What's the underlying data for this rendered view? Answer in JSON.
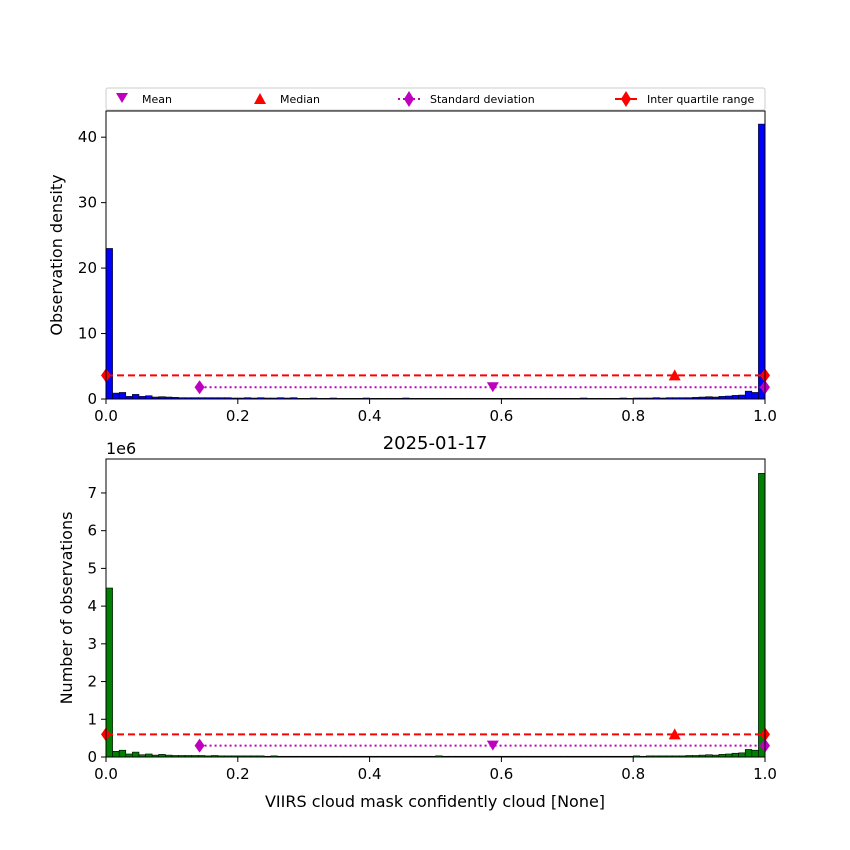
{
  "legend": {
    "mean": "Mean",
    "median": "Median",
    "std": "Standard deviation",
    "iqr": "Inter quartile range"
  },
  "colors": {
    "density_bars": "#0000ff",
    "count_bars": "#008000",
    "mean_marker": "#bf00bf",
    "std": "#bf00bf",
    "iqr": "#ff0000",
    "median_marker": "#ff0000"
  },
  "chart_data": [
    {
      "type": "bar",
      "title": "",
      "xlabel": "",
      "ylabel": "Observation density",
      "xlim": [
        0,
        1
      ],
      "ylim": [
        0,
        44
      ],
      "xticks": [
        "0.0",
        "0.2",
        "0.4",
        "0.6",
        "0.8",
        "1.0"
      ],
      "yticks": [
        "0",
        "10",
        "20",
        "30",
        "40"
      ],
      "bin_width": 0.01,
      "values": [
        23.0,
        0.9,
        1.0,
        0.4,
        0.7,
        0.4,
        0.5,
        0.3,
        0.35,
        0.3,
        0.25,
        0.2,
        0.2,
        0.2,
        0.2,
        0.2,
        0.2,
        0.2,
        0.2,
        0.15,
        0.15,
        0.2,
        0.15,
        0.2,
        0.15,
        0.15,
        0.2,
        0.15,
        0.2,
        0.1,
        0.1,
        0.15,
        0.1,
        0.1,
        0.15,
        0.1,
        0.1,
        0.1,
        0.1,
        0.15,
        0.1,
        0.1,
        0.1,
        0.1,
        0.1,
        0.15,
        0.1,
        0.1,
        0.1,
        0.1,
        0.1,
        0.1,
        0.1,
        0.1,
        0.1,
        0.1,
        0.1,
        0.1,
        0.1,
        0.1,
        0.1,
        0.1,
        0.1,
        0.1,
        0.1,
        0.1,
        0.1,
        0.1,
        0.1,
        0.1,
        0.1,
        0.1,
        0.15,
        0.1,
        0.1,
        0.1,
        0.1,
        0.1,
        0.15,
        0.1,
        0.15,
        0.15,
        0.15,
        0.2,
        0.15,
        0.2,
        0.2,
        0.2,
        0.2,
        0.25,
        0.3,
        0.35,
        0.3,
        0.4,
        0.45,
        0.55,
        0.6,
        1.2,
        1.0,
        42.0
      ],
      "stats": {
        "mean": 0.587,
        "median": 0.863,
        "std_range": [
          0.142,
          1.0
        ],
        "iqr_range": [
          0.0,
          1.0
        ],
        "std_y": 1.8,
        "iqr_y": 3.6,
        "mean_y": 1.8,
        "median_y": 3.6
      },
      "legend_placement": "top"
    },
    {
      "type": "bar",
      "title": "2025-01-17",
      "xlabel": "VIIRS cloud mask confidently cloud [None]",
      "ylabel": "Number of observations",
      "offset_text": "1e6",
      "xlim": [
        0,
        1
      ],
      "ylim": [
        0,
        7.9
      ],
      "xticks": [
        "0.0",
        "0.2",
        "0.4",
        "0.6",
        "0.8",
        "1.0"
      ],
      "yticks": [
        "0",
        "1",
        "2",
        "3",
        "4",
        "5",
        "6",
        "7"
      ],
      "bin_width": 0.01,
      "values": [
        4.48,
        0.15,
        0.18,
        0.08,
        0.13,
        0.06,
        0.08,
        0.05,
        0.07,
        0.05,
        0.04,
        0.04,
        0.04,
        0.04,
        0.04,
        0.03,
        0.04,
        0.03,
        0.03,
        0.03,
        0.03,
        0.03,
        0.03,
        0.03,
        0.02,
        0.03,
        0.02,
        0.02,
        0.02,
        0.02,
        0.02,
        0.02,
        0.02,
        0.02,
        0.02,
        0.02,
        0.02,
        0.02,
        0.02,
        0.02,
        0.02,
        0.02,
        0.02,
        0.02,
        0.02,
        0.02,
        0.02,
        0.02,
        0.02,
        0.02,
        0.03,
        0.02,
        0.02,
        0.02,
        0.02,
        0.02,
        0.02,
        0.02,
        0.02,
        0.02,
        0.02,
        0.02,
        0.02,
        0.02,
        0.02,
        0.02,
        0.02,
        0.02,
        0.02,
        0.02,
        0.02,
        0.02,
        0.02,
        0.02,
        0.02,
        0.02,
        0.02,
        0.02,
        0.02,
        0.02,
        0.03,
        0.02,
        0.03,
        0.03,
        0.03,
        0.03,
        0.03,
        0.03,
        0.04,
        0.04,
        0.05,
        0.06,
        0.05,
        0.07,
        0.08,
        0.1,
        0.11,
        0.2,
        0.18,
        7.52
      ],
      "stats": {
        "mean": 0.587,
        "median": 0.863,
        "std_range": [
          0.142,
          1.0
        ],
        "iqr_range": [
          0.0,
          1.0
        ],
        "std_y": 0.3,
        "iqr_y": 0.6,
        "mean_y": 0.3,
        "median_y": 0.6
      }
    }
  ]
}
